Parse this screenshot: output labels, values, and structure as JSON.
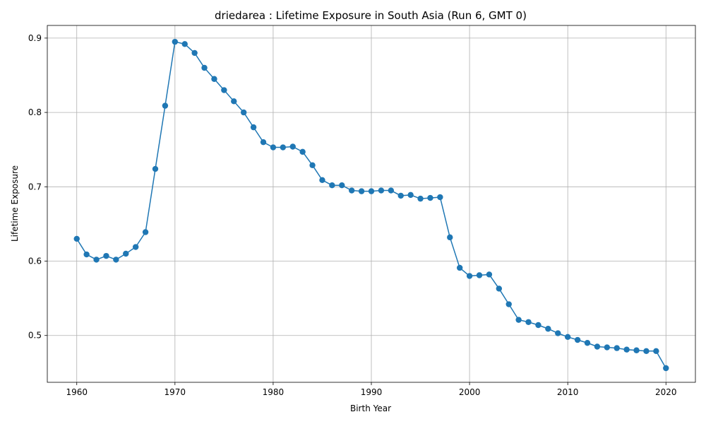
{
  "chart_data": {
    "type": "line",
    "title": "driedarea : Lifetime Exposure in South Asia (Run 6, GMT 0)",
    "xlabel": "Birth Year",
    "ylabel": "Lifetime Exposure",
    "xlim": [
      1957,
      2023
    ],
    "ylim": [
      0.437,
      0.917
    ],
    "xticks": [
      1960,
      1970,
      1980,
      1990,
      2000,
      2010,
      2020
    ],
    "yticks": [
      0.5,
      0.6,
      0.7,
      0.8,
      0.9
    ],
    "ytick_labels": [
      "0.5",
      "0.6",
      "0.7",
      "0.8",
      "0.9"
    ],
    "grid": true,
    "markers": "circle",
    "color": "#1f77b4",
    "series": [
      {
        "x": [
          1960,
          1961,
          1962,
          1963,
          1964,
          1965,
          1966,
          1967,
          1968,
          1969,
          1970,
          1971,
          1972,
          1973,
          1974,
          1975,
          1976,
          1977,
          1978,
          1979,
          1980,
          1981,
          1982,
          1983,
          1984,
          1985,
          1986,
          1987,
          1988,
          1989,
          1990,
          1991,
          1992,
          1993,
          1994,
          1995,
          1996,
          1997,
          1998,
          1999,
          2000,
          2001,
          2002,
          2003,
          2004,
          2005,
          2006,
          2007,
          2008,
          2009,
          2010,
          2011,
          2012,
          2013,
          2014,
          2015,
          2016,
          2017,
          2018,
          2019,
          2020
        ],
        "values": [
          0.63,
          0.609,
          0.602,
          0.607,
          0.602,
          0.61,
          0.619,
          0.639,
          0.724,
          0.809,
          0.895,
          0.892,
          0.88,
          0.86,
          0.845,
          0.83,
          0.815,
          0.8,
          0.78,
          0.76,
          0.753,
          0.753,
          0.754,
          0.747,
          0.729,
          0.709,
          0.702,
          0.702,
          0.695,
          0.694,
          0.694,
          0.695,
          0.695,
          0.688,
          0.689,
          0.684,
          0.685,
          0.686,
          0.632,
          0.591,
          0.58,
          0.581,
          0.582,
          0.563,
          0.542,
          0.521,
          0.518,
          0.514,
          0.509,
          0.503,
          0.498,
          0.494,
          0.49,
          0.485,
          0.484,
          0.483,
          0.481,
          0.48,
          0.479,
          0.479,
          0.456
        ]
      }
    ]
  }
}
